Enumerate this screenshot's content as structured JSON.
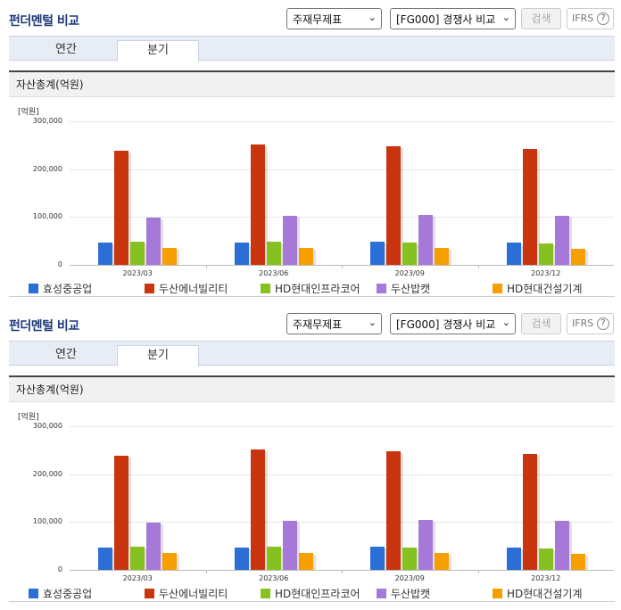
{
  "header": {
    "title": "펀더멘털 비교",
    "select_1": "주재무제표",
    "select_2": "[FG000] 경쟁사 비교",
    "search_label": "검색",
    "ifrs_label": "IFRS",
    "help_glyph": "?"
  },
  "tabs": [
    {
      "label": "연간",
      "active": false
    },
    {
      "label": "분기",
      "active": true
    }
  ],
  "section_title": "자산총계(억원)",
  "colors": {
    "효성중공업": "#2b6fd6",
    "두산에너빌리티": "#c9350e",
    "HD현대인프라코어": "#86c21f",
    "두산밥캣": "#a679d8",
    "HD현대건설기계": "#f5a000"
  },
  "chart_data": {
    "type": "bar",
    "unit_label": "[억원]",
    "categories": [
      "2023/03",
      "2023/06",
      "2023/09",
      "2023/12"
    ],
    "ylim": [
      0,
      300000
    ],
    "yticks": [
      "0",
      "100,000",
      "200,000",
      "300,000"
    ],
    "series": [
      {
        "name": "효성중공업",
        "values": [
          47000,
          46000,
          48000,
          46000
        ]
      },
      {
        "name": "두산에너빌리티",
        "values": [
          238000,
          251000,
          247000,
          243000
        ]
      },
      {
        "name": "HD현대인프라코어",
        "values": [
          48000,
          48000,
          47000,
          45000
        ]
      },
      {
        "name": "두산밥캣",
        "values": [
          99000,
          103000,
          105000,
          103000
        ]
      },
      {
        "name": "HD현대건설기계",
        "values": [
          36000,
          35000,
          36000,
          34000
        ]
      }
    ],
    "legend_position": "bottom"
  }
}
